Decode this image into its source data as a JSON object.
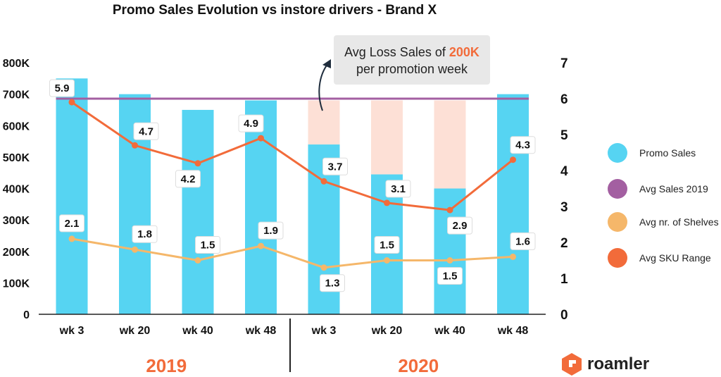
{
  "chart_data": {
    "type": "bar",
    "title": "Promo Sales Evolution vs instore drivers - Brand X",
    "categories": [
      "wk 3",
      "wk 20",
      "wk 40",
      "wk 48",
      "wk 3",
      "wk 20",
      "wk 40",
      "wk 48"
    ],
    "groups": [
      {
        "label": "2019",
        "categories": [
          0,
          1,
          2,
          3
        ]
      },
      {
        "label": "2020",
        "categories": [
          4,
          5,
          6,
          7
        ]
      }
    ],
    "y_left": {
      "ylim": [
        0,
        800000
      ],
      "ticks": [
        "0",
        "100K",
        "200K",
        "300K",
        "400K",
        "500K",
        "600K",
        "700K",
        "800K"
      ]
    },
    "y_right": {
      "ylim": [
        0,
        7
      ],
      "ticks": [
        "0",
        "1",
        "2",
        "3",
        "4",
        "5",
        "6",
        "7"
      ]
    },
    "series": [
      {
        "name": "Promo Sales",
        "type": "bar",
        "axis": "left",
        "color": "#56d4f2",
        "values": [
          750000,
          700000,
          650000,
          680000,
          540000,
          445000,
          400000,
          700000
        ]
      },
      {
        "name": "Avg Sales 2019",
        "type": "line",
        "axis": "right",
        "color": "#a35fa1",
        "values": [
          6,
          6,
          6,
          6,
          6,
          6,
          6,
          6
        ]
      },
      {
        "name": "Avg nr. of Shelves",
        "type": "line",
        "axis": "right",
        "color": "#f5b76a",
        "values": [
          2.1,
          1.8,
          1.5,
          1.9,
          1.3,
          1.5,
          1.5,
          1.6
        ],
        "labels": [
          "2.1",
          "1.8",
          "1.5",
          "1.9",
          "1.3",
          "1.5",
          "1.5",
          "1.6"
        ]
      },
      {
        "name": "Avg SKU Range",
        "type": "line",
        "axis": "right",
        "color": "#f26b3a",
        "values": [
          5.9,
          4.7,
          4.2,
          4.9,
          3.7,
          3.1,
          2.9,
          4.3
        ],
        "labels": [
          "5.9",
          "4.7",
          "4.2",
          "4.9",
          "3.7",
          "3.1",
          "2.9",
          "4.3"
        ]
      }
    ],
    "loss_gap": {
      "color": "#fde0d6",
      "target": 680000,
      "categories": [
        4,
        5,
        6
      ]
    },
    "annotation": {
      "prefix": "Avg Loss Sales of ",
      "highlight": "200K",
      "line2": "per promotion week"
    },
    "legend": {
      "placement": "right"
    },
    "grid": false
  },
  "colors": {
    "year": "#f26b3a",
    "highlight": "#f26b3a",
    "logo": "#f26b3a",
    "axis": "#222222"
  },
  "brand": {
    "name": "roamler"
  }
}
